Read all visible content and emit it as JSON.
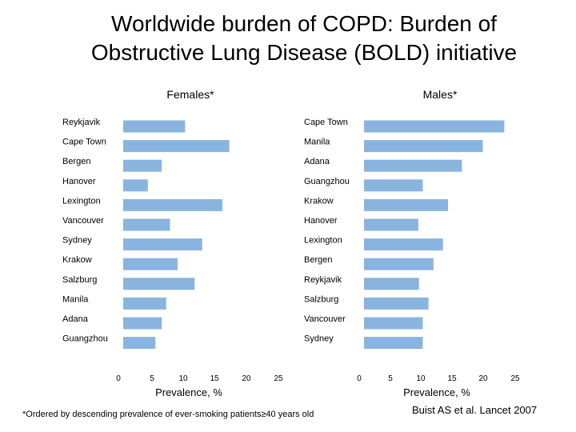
{
  "title_line1": "Worldwide burden of COPD: Burden of",
  "title_line2": "Obstructive Lung Disease (BOLD) initiative",
  "footnote": "*Ordered by descending prevalence of ever-smoking patients≥40 years old",
  "citation": "Buist AS et al. Lancet 2007",
  "bar_color": "#8ab4e0",
  "chart_data": [
    {
      "type": "bar",
      "orientation": "horizontal",
      "title": "Females*",
      "xlabel": "Prevalence, %",
      "xlim": [
        0,
        25
      ],
      "xticks": [
        0,
        5,
        10,
        15,
        20,
        25
      ],
      "categories": [
        "Reykjavik",
        "Cape Town",
        "Bergen",
        "Hanover",
        "Lexington",
        "Vancouver",
        "Sydney",
        "Krakow",
        "Salzburg",
        "Manila",
        "Adana",
        "Guangzhou"
      ],
      "values": [
        9.8,
        16.8,
        6.1,
        3.9,
        15.7,
        7.4,
        12.5,
        8.6,
        11.3,
        6.8,
        6.1,
        5.1
      ]
    },
    {
      "type": "bar",
      "orientation": "horizontal",
      "title": "Males*",
      "xlabel": "Prevalence, %",
      "xlim": [
        0,
        25
      ],
      "xticks": [
        0,
        5,
        10,
        15,
        20,
        25
      ],
      "categories": [
        "Cape Town",
        "Manila",
        "Adana",
        "Guangzhou",
        "Krakow",
        "Hanover",
        "Lexington",
        "Bergen",
        "Reykjavik",
        "Salzburg",
        "Vancouver",
        "Sydney"
      ],
      "values": [
        22.2,
        18.8,
        15.5,
        9.3,
        13.3,
        8.6,
        12.5,
        11.0,
        8.7,
        10.2,
        9.3,
        9.3
      ]
    }
  ]
}
